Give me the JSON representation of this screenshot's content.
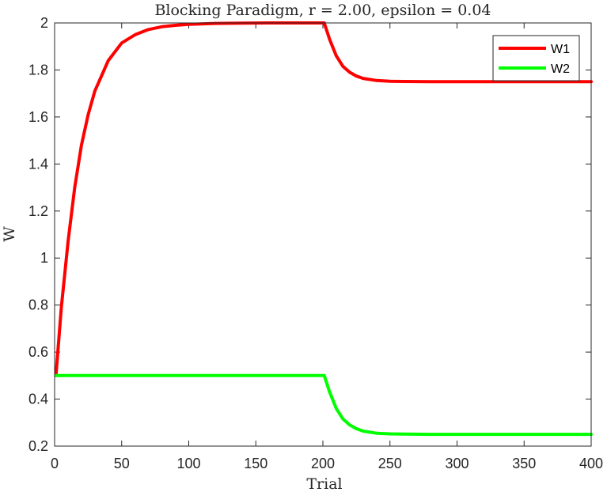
{
  "chart_data": {
    "type": "line",
    "title": "Blocking Paradigm, r = 2.00, epsilon = 0.04",
    "xlabel": "Trial",
    "ylabel": "W",
    "xlim": [
      0,
      400
    ],
    "ylim": [
      0.2,
      2
    ],
    "xticks": [
      0,
      50,
      100,
      150,
      200,
      250,
      300,
      350,
      400
    ],
    "yticks": [
      0.2,
      0.4,
      0.6,
      0.8,
      1,
      1.2,
      1.4,
      1.6,
      1.8,
      2
    ],
    "grid": false,
    "legend": "top-right",
    "series": [
      {
        "name": "W1",
        "color": "#ff0000",
        "x": [
          1,
          5,
          10,
          15,
          20,
          25,
          30,
          40,
          50,
          60,
          70,
          80,
          90,
          100,
          120,
          140,
          160,
          180,
          200,
          201,
          205,
          210,
          215,
          220,
          225,
          230,
          240,
          250,
          260,
          280,
          300,
          350,
          400
        ],
        "y": [
          0.5,
          0.79,
          1.07,
          1.3,
          1.48,
          1.61,
          1.71,
          1.84,
          1.915,
          1.95,
          1.972,
          1.984,
          1.99,
          1.994,
          1.998,
          1.999,
          2.0,
          2.0,
          2.0,
          2.0,
          1.93,
          1.86,
          1.815,
          1.79,
          1.774,
          1.764,
          1.755,
          1.752,
          1.751,
          1.75,
          1.75,
          1.75,
          1.75
        ]
      },
      {
        "name": "W2",
        "color": "#00ff00",
        "x": [
          1,
          50,
          100,
          150,
          200,
          201,
          205,
          210,
          215,
          220,
          225,
          230,
          240,
          250,
          260,
          280,
          300,
          350,
          400
        ],
        "y": [
          0.5,
          0.5,
          0.5,
          0.5,
          0.5,
          0.5,
          0.43,
          0.36,
          0.315,
          0.29,
          0.274,
          0.264,
          0.255,
          0.252,
          0.251,
          0.25,
          0.25,
          0.25,
          0.25
        ]
      }
    ]
  }
}
